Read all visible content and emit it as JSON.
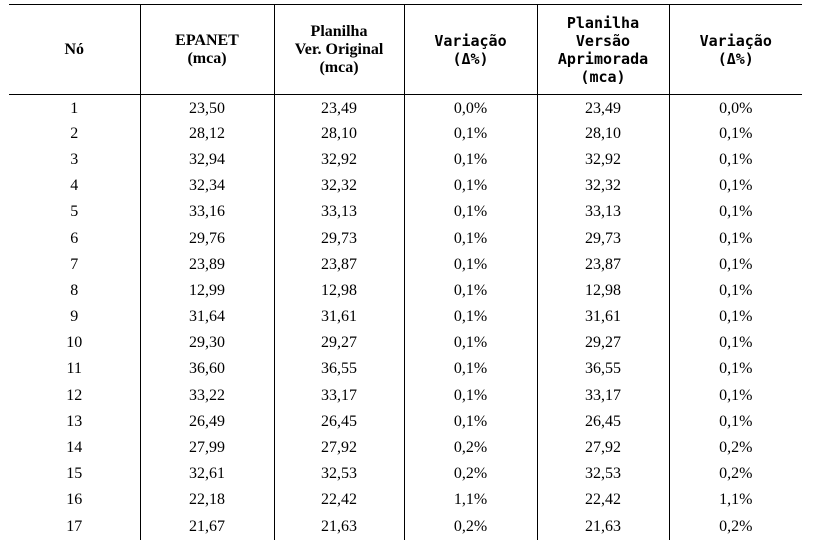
{
  "table": {
    "headers": {
      "node": [
        "Nó"
      ],
      "epanet": [
        "EPANET",
        "(mca)"
      ],
      "original": [
        "Planilha",
        "Ver. Original",
        "(mca)"
      ],
      "variation1": [
        "Variação",
        "(Δ%)"
      ],
      "improved": [
        "Planilha",
        "Versão",
        "Aprimorada",
        "(mca)"
      ],
      "variation2": [
        "Variação",
        "(Δ%)"
      ]
    },
    "rows": [
      [
        "1",
        "23,50",
        "23,49",
        "0,0%",
        "23,49",
        "0,0%"
      ],
      [
        "2",
        "28,12",
        "28,10",
        "0,1%",
        "28,10",
        "0,1%"
      ],
      [
        "3",
        "32,94",
        "32,92",
        "0,1%",
        "32,92",
        "0,1%"
      ],
      [
        "4",
        "32,34",
        "32,32",
        "0,1%",
        "32,32",
        "0,1%"
      ],
      [
        "5",
        "33,16",
        "33,13",
        "0,1%",
        "33,13",
        "0,1%"
      ],
      [
        "6",
        "29,76",
        "29,73",
        "0,1%",
        "29,73",
        "0,1%"
      ],
      [
        "7",
        "23,89",
        "23,87",
        "0,1%",
        "23,87",
        "0,1%"
      ],
      [
        "8",
        "12,99",
        "12,98",
        "0,1%",
        "12,98",
        "0,1%"
      ],
      [
        "9",
        "31,64",
        "31,61",
        "0,1%",
        "31,61",
        "0,1%"
      ],
      [
        "10",
        "29,30",
        "29,27",
        "0,1%",
        "29,27",
        "0,1%"
      ],
      [
        "11",
        "36,60",
        "36,55",
        "0,1%",
        "36,55",
        "0,1%"
      ],
      [
        "12",
        "33,22",
        "33,17",
        "0,1%",
        "33,17",
        "0,1%"
      ],
      [
        "13",
        "26,49",
        "26,45",
        "0,1%",
        "26,45",
        "0,1%"
      ],
      [
        "14",
        "27,99",
        "27,92",
        "0,2%",
        "27,92",
        "0,2%"
      ],
      [
        "15",
        "32,61",
        "32,53",
        "0,2%",
        "32,53",
        "0,2%"
      ],
      [
        "16",
        "22,18",
        "22,42",
        "1,1%",
        "22,42",
        "1,1%"
      ],
      [
        "17",
        "21,67",
        "21,63",
        "0,2%",
        "21,63",
        "0,2%"
      ]
    ]
  }
}
